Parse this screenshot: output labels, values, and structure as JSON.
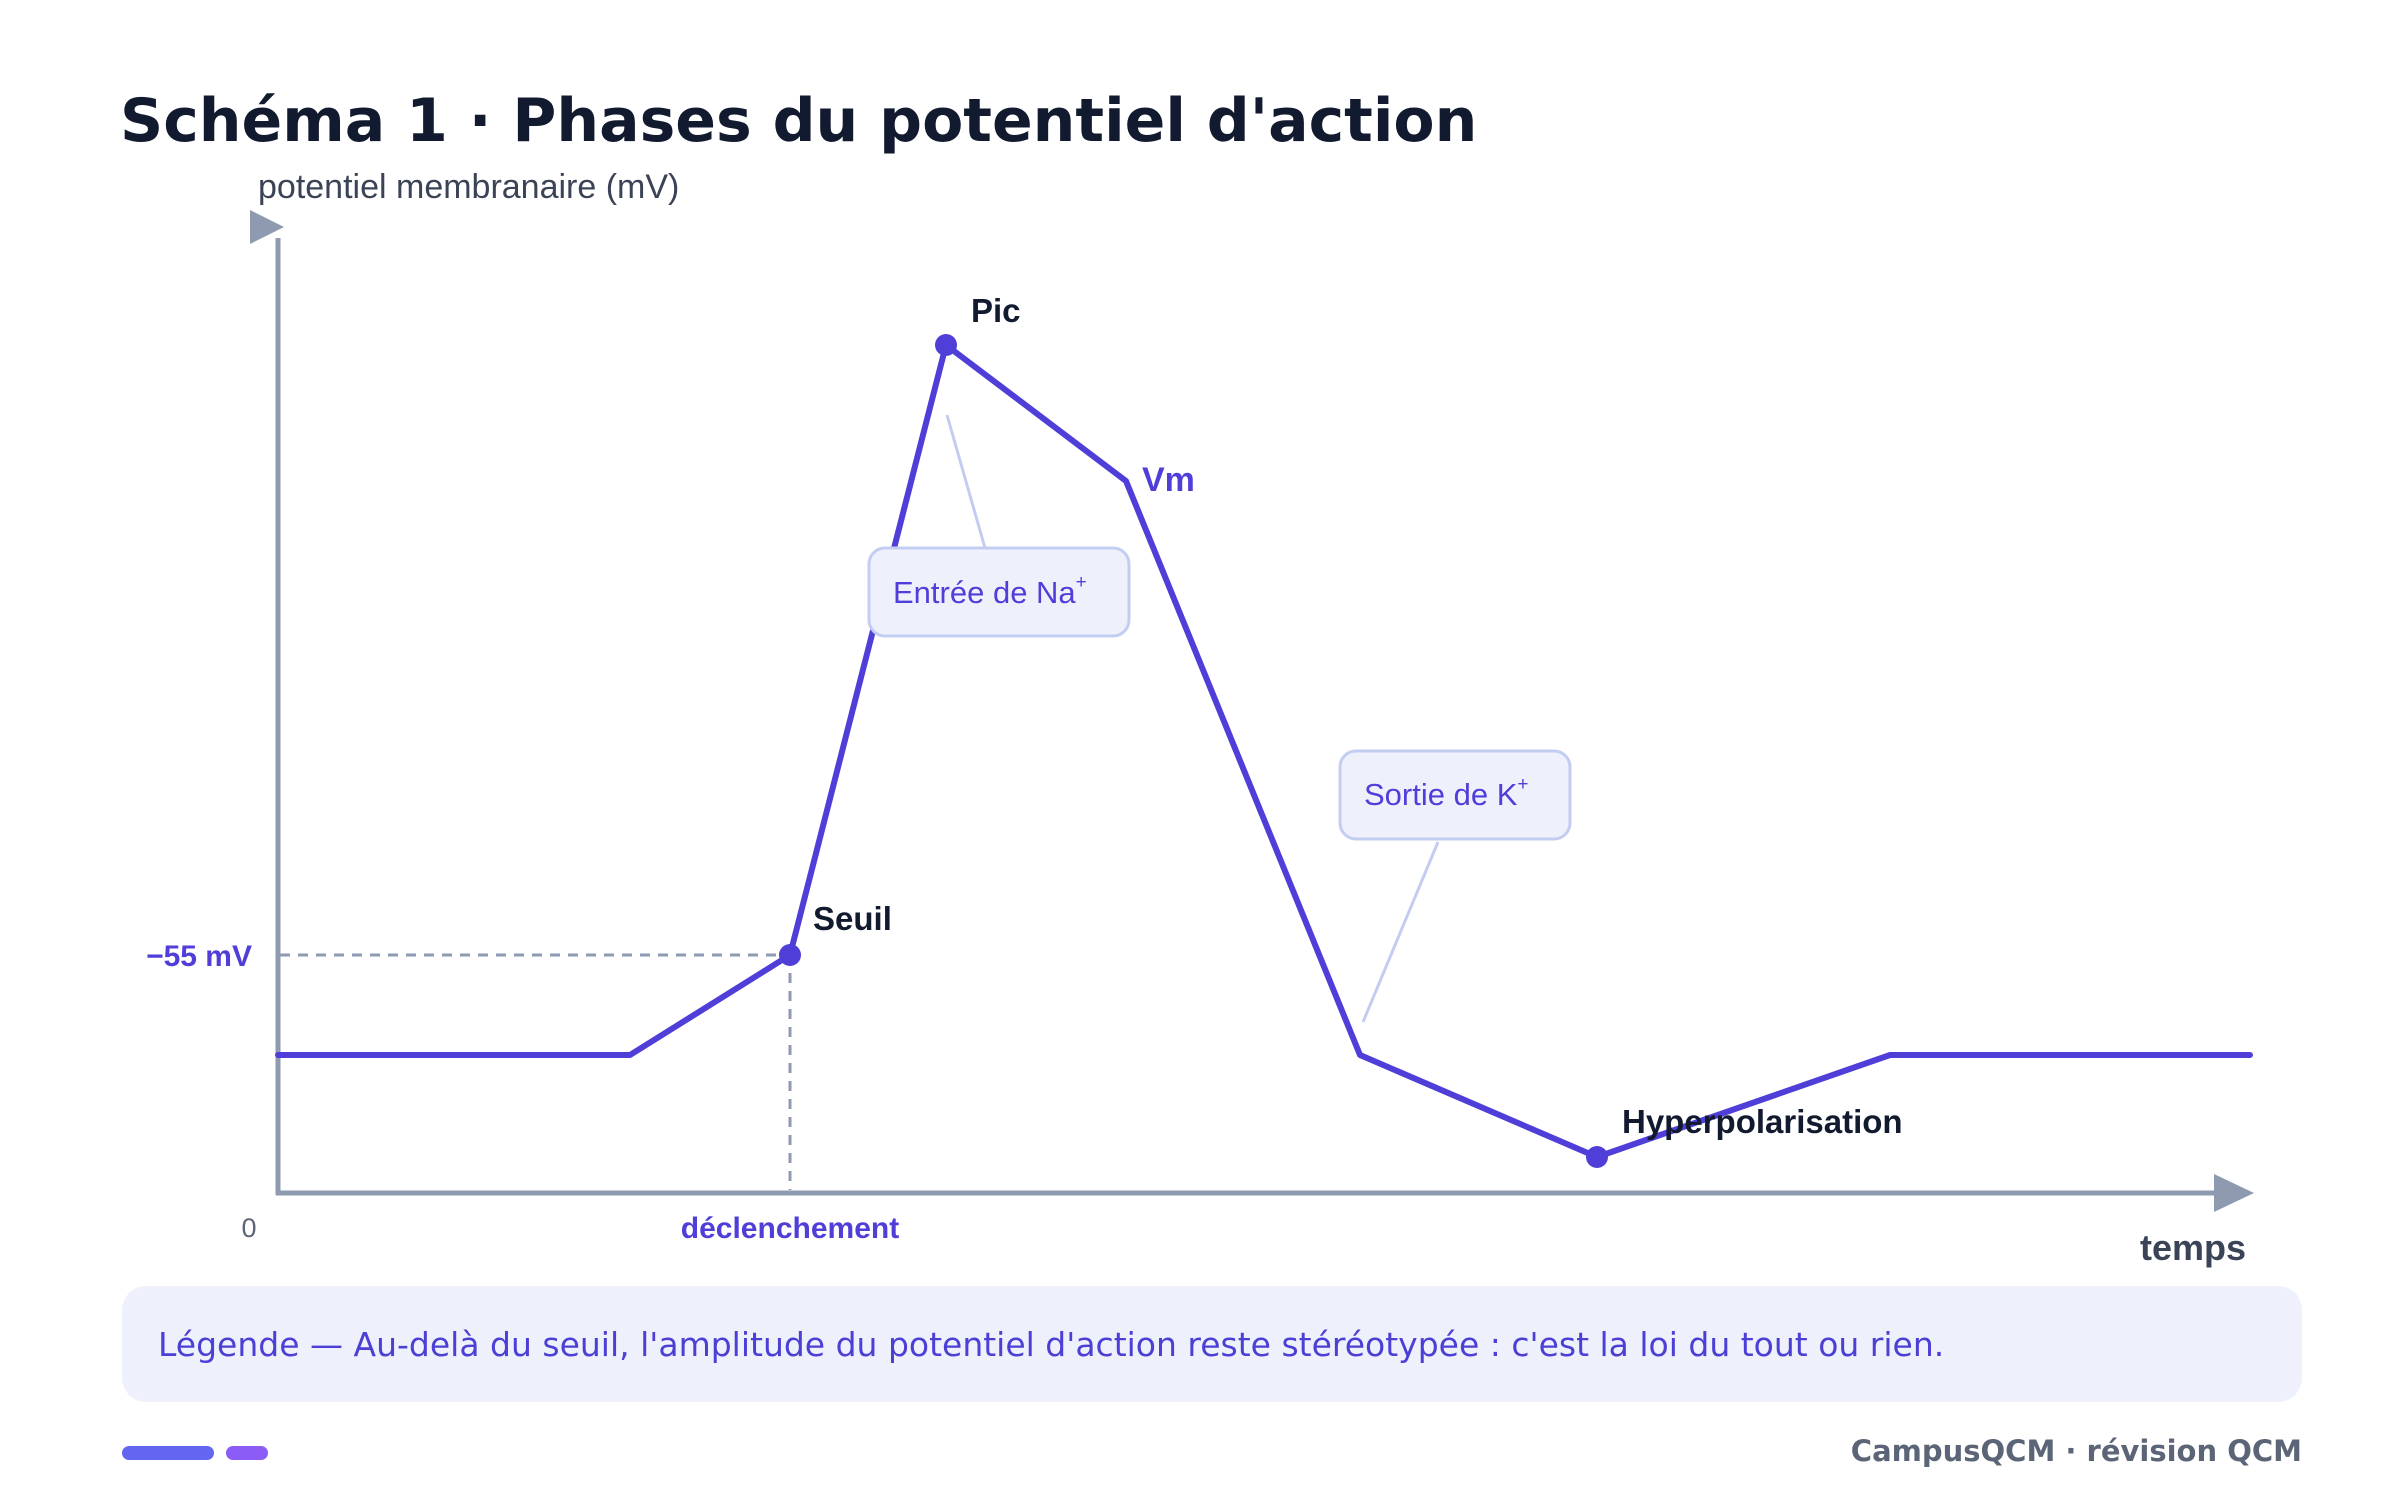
{
  "title": "Schéma 1 · Phases du potentiel d'action",
  "axes": {
    "y_label": "potentiel membranaire (mV)",
    "x_label": "temps",
    "origin_label": "0",
    "threshold_tick": "−55 mV",
    "trigger_tick": "déclenchement"
  },
  "curve": {
    "label": "Vm"
  },
  "points": {
    "peak": "Pic",
    "threshold": "Seuil",
    "hyperpolarization": "Hyperpolarisation"
  },
  "callouts": {
    "na_in": "Entrée de Na",
    "na_sup": "+",
    "k_out": "Sortie de K",
    "k_sup": "+"
  },
  "legend": {
    "text": "Légende — Au-delà du seuil, l'amplitude du potentiel d'action reste stéréotypée : c'est la loi du tout ou rien."
  },
  "footer": {
    "brand": "CampusQCM · révision QCM"
  },
  "colors": {
    "curve": "#4f3fd8",
    "axis": "#8e9ab0",
    "title": "#111a2e",
    "callout_bg": "#eef1fc",
    "callout_border": "#c3cdf2",
    "legend_bg": "#eef1fc",
    "accent": "#6366f1",
    "accent_2": "#8b5cf6"
  }
}
